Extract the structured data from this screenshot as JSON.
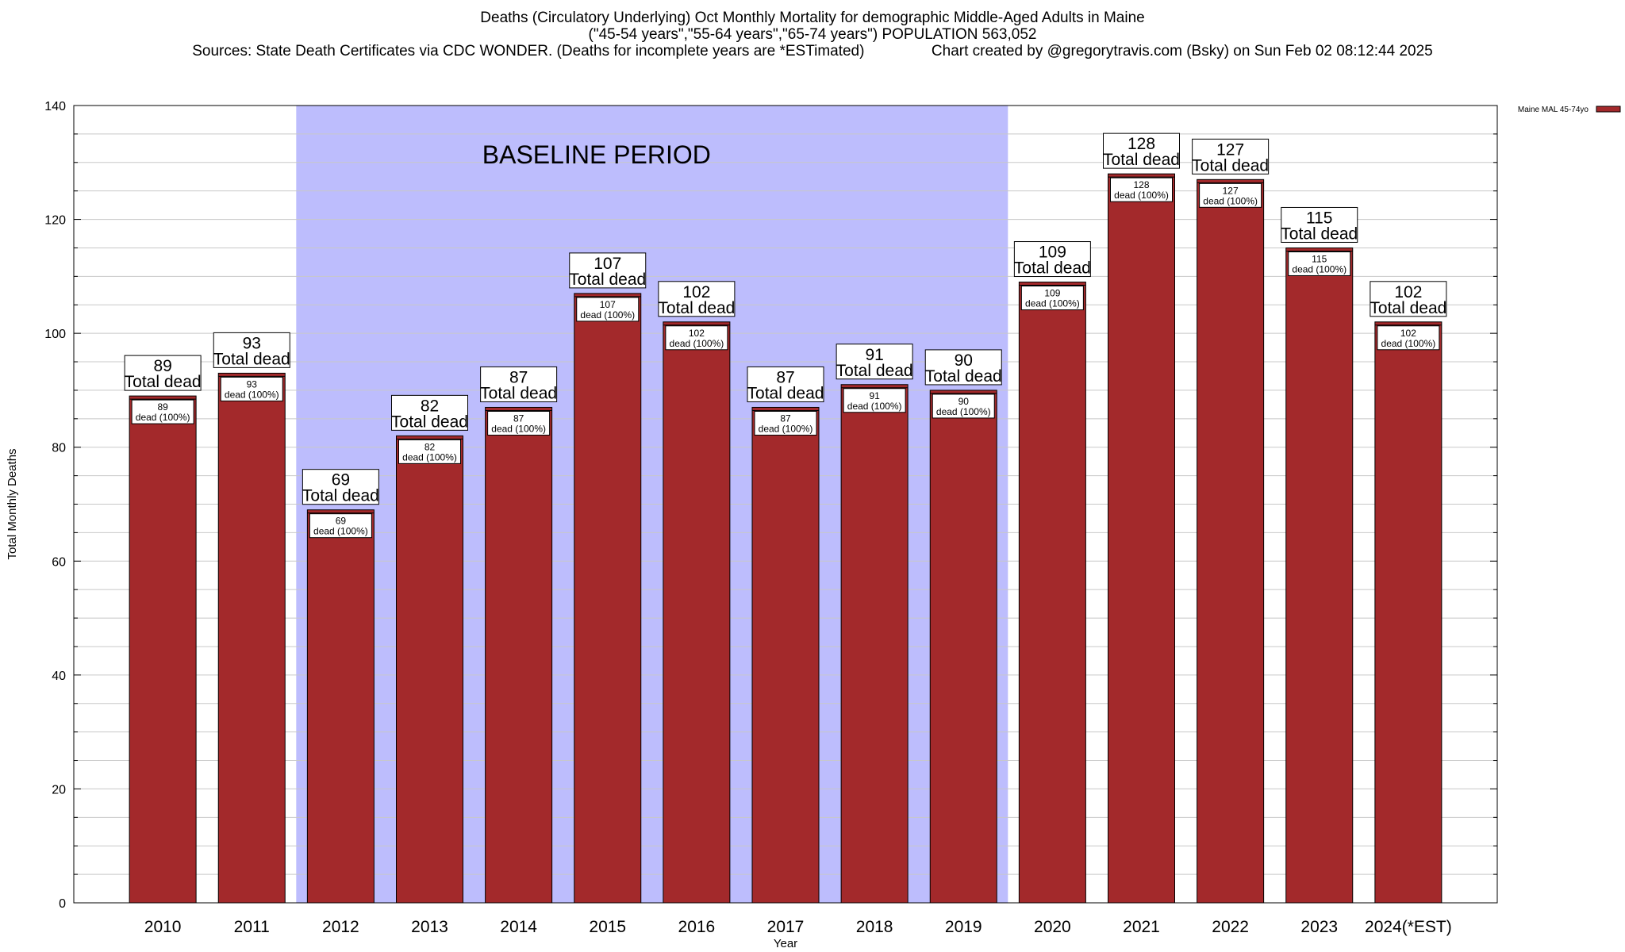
{
  "titles": {
    "line1": "Deaths (Circulatory Underlying) Oct Monthly Mortality for demographic Middle-Aged Adults in Maine",
    "line2": "(\"45-54 years\",\"55-64 years\",\"65-74 years\") POPULATION 563,052",
    "line3": "Sources: State Death Certificates via CDC WONDER. (Deaths for incomplete years are *ESTimated)                Chart created by @gregorytravis.com (Bsky) on Sun Feb 02 08:12:44 2025"
  },
  "chart_data": {
    "type": "bar",
    "categories": [
      "2010",
      "2011",
      "2012",
      "2013",
      "2014",
      "2015",
      "2016",
      "2017",
      "2018",
      "2019",
      "2020",
      "2021",
      "2022",
      "2023",
      "2024(*EST)"
    ],
    "series": [
      {
        "name": "Maine MAL 45-74yo",
        "values": [
          89,
          93,
          69,
          82,
          87,
          107,
          102,
          87,
          91,
          90,
          109,
          128,
          127,
          115,
          102
        ]
      }
    ],
    "xlabel": "Year",
    "ylabel": "Total Monthly Deaths",
    "ylim": [
      0,
      140
    ],
    "yticks": [
      0,
      20,
      40,
      60,
      80,
      100,
      120,
      140
    ],
    "grid": true,
    "legend_position": "top-right",
    "annotation": {
      "text": "BASELINE PERIOD",
      "from_category": "2012",
      "to_category": "2019"
    },
    "label_total_text": "Total dead",
    "label_dead_text": "dead (100%)",
    "colors": {
      "bar": "#a3292b",
      "baseline": "#bdbdfd",
      "grid": "#c8c8c8"
    }
  }
}
